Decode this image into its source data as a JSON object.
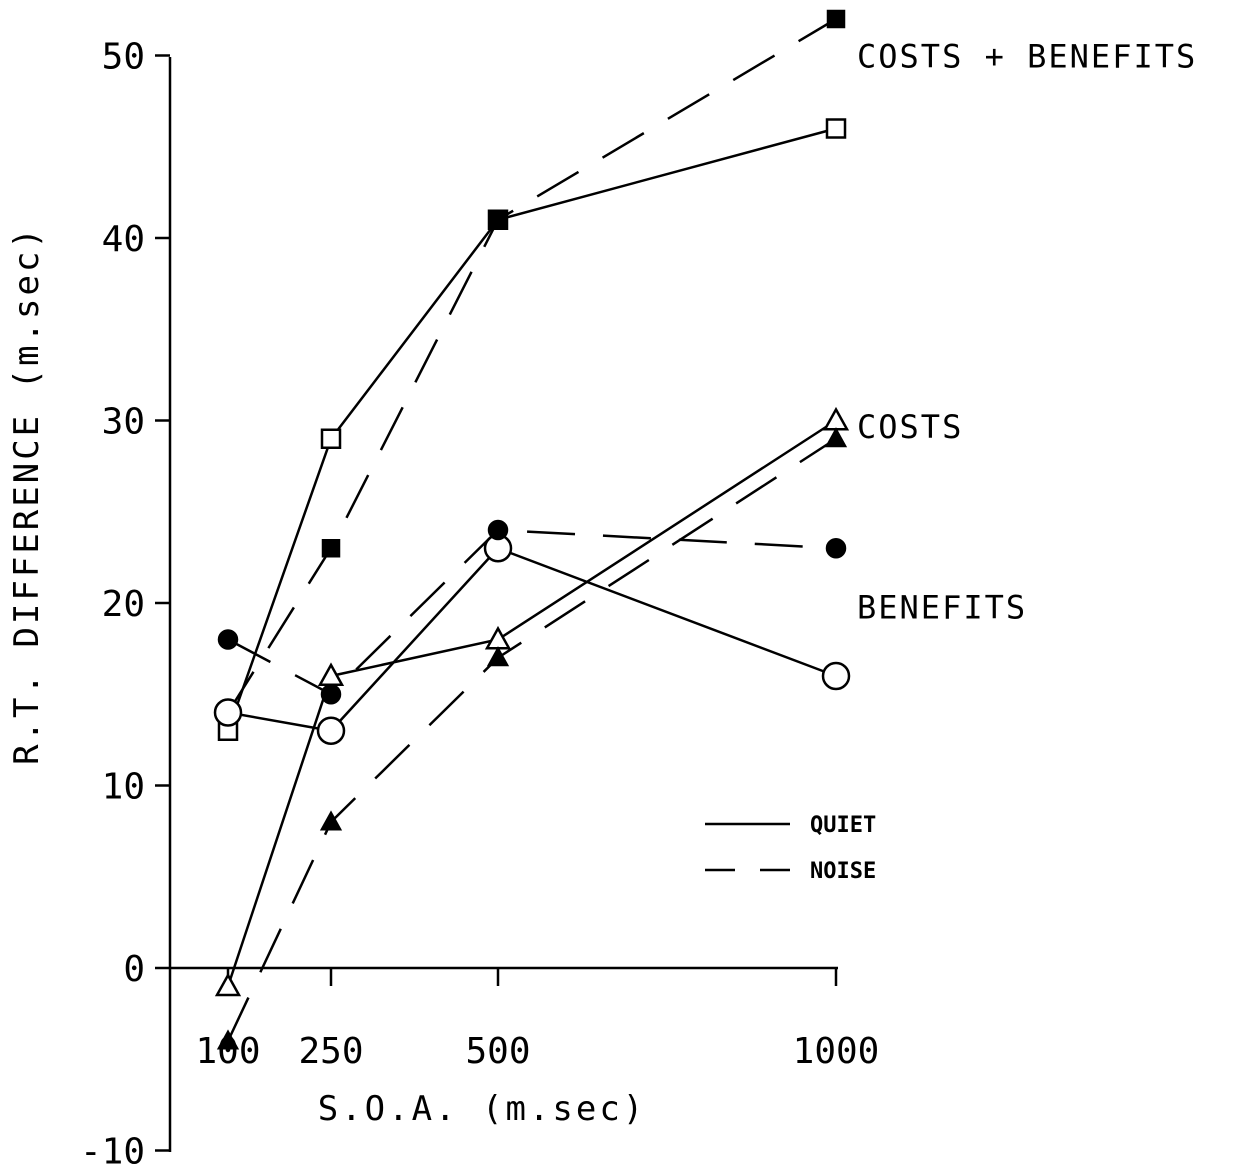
{
  "chart_data": {
    "type": "line",
    "xlabel": "S.O.A. (m.sec)",
    "ylabel": "R.T. DIFFERENCE (m.sec)",
    "ylim": [
      -10,
      50
    ],
    "x_ticks": [
      "100",
      "250",
      "500",
      "1000"
    ],
    "y_ticks": [
      "-10",
      "0",
      "10",
      "20",
      "30",
      "40",
      "50"
    ],
    "x": [
      100,
      250,
      500,
      1000
    ],
    "series": [
      {
        "group": "COSTS + BENEFITS",
        "condition": "QUIET",
        "marker": "square-open",
        "values": [
          13,
          29,
          41,
          46
        ]
      },
      {
        "group": "COSTS + BENEFITS",
        "condition": "NOISE",
        "marker": "square-filled",
        "values": [
          14,
          23,
          41,
          52
        ]
      },
      {
        "group": "COSTS",
        "condition": "QUIET",
        "marker": "triangle-open",
        "values": [
          -1,
          16,
          18,
          30
        ]
      },
      {
        "group": "COSTS",
        "condition": "NOISE",
        "marker": "triangle-filled",
        "values": [
          -4,
          8,
          17,
          29
        ]
      },
      {
        "group": "BENEFITS",
        "condition": "QUIET",
        "marker": "circle-open",
        "values": [
          14,
          13,
          23,
          16
        ]
      },
      {
        "group": "BENEFITS",
        "condition": "NOISE",
        "marker": "circle-filled",
        "values": [
          18,
          15,
          24,
          23
        ]
      }
    ],
    "series_labels": [
      {
        "text": "COSTS + BENEFITS",
        "y": 50
      },
      {
        "text": "COSTS",
        "y": 29.7
      },
      {
        "text": "BENEFITS",
        "y": 19.8
      }
    ],
    "legend": {
      "position": "lower-right",
      "items": [
        {
          "label": "QUIET",
          "style": "solid"
        },
        {
          "label": "NOISE",
          "style": "dashed"
        }
      ]
    }
  }
}
